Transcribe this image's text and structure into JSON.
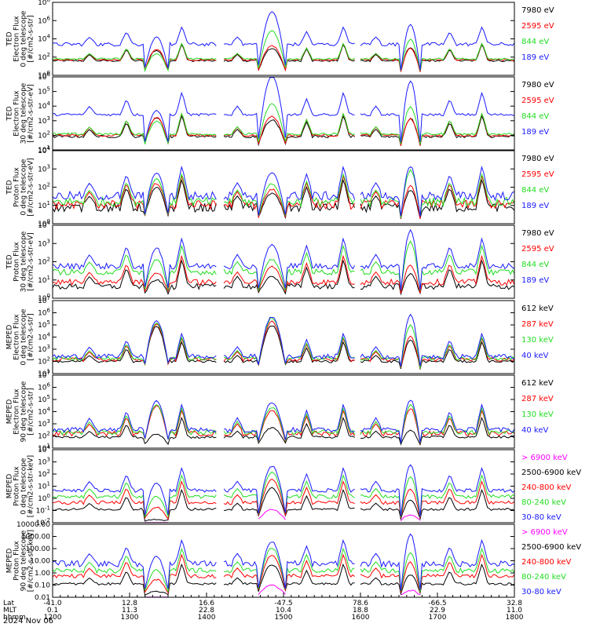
{
  "colors": {
    "blue": "#1a1aff",
    "red": "#ff0000",
    "green": "#22dd22",
    "black": "#000000",
    "magenta": "#ff00ff"
  },
  "chart_data": [
    {
      "type": "line",
      "ylabel": [
        "TED",
        "Electron Flux",
        "0 deg telescope",
        "[#/cm2-s-str]"
      ],
      "ylog": true,
      "ylim_exp": [
        0,
        8
      ],
      "ytick_labels": [
        "10^0",
        "10^2",
        "10^4",
        "10^6",
        "10^8"
      ],
      "series": [
        {
          "name": "7980 eV",
          "color": "black",
          "base": [
            1.5,
            1.7
          ],
          "peak": [
            1.2,
            1.4,
            0.6,
            1.5,
            0.4
          ]
        },
        {
          "name": "2595 eV",
          "color": "red",
          "base": [
            1.6,
            1.8
          ],
          "peak": [
            1.2,
            1.6,
            0.6,
            1.3,
            0.4
          ]
        },
        {
          "name": "844 eV",
          "color": "green",
          "base": [
            1.7,
            1.9
          ],
          "peak": [
            0.6,
            3.1,
            0.5,
            2.2,
            0.6
          ]
        },
        {
          "name": "189 eV",
          "color": "blue",
          "base": [
            3.2,
            3.6
          ],
          "peak": [
            0.9,
            3.7,
            0.6,
            2.3,
            0.7
          ]
        }
      ]
    },
    {
      "type": "line",
      "ylabel": [
        "TED",
        "Electron Flux",
        "30 deg telescope",
        "[#/cm2-s-str-eV]"
      ],
      "ylog": true,
      "ylim_exp": [
        0,
        6
      ],
      "ytick_labels": [
        "10^1",
        "10^2",
        "10^3",
        "10^4",
        "10^5",
        "10^6"
      ],
      "series": [
        {
          "name": "7980 eV",
          "color": "black",
          "base": [
            1.0,
            1.2
          ],
          "peak": [
            1.6,
            1.4,
            0.5,
            1.5,
            0.4
          ]
        },
        {
          "name": "2595 eV",
          "color": "red",
          "base": [
            1.1,
            1.3
          ],
          "peak": [
            1.5,
            1.6,
            0.6,
            1.4,
            0.5
          ]
        },
        {
          "name": "844 eV",
          "color": "green",
          "base": [
            1.2,
            1.4
          ],
          "peak": [
            1.1,
            2.5,
            0.5,
            2.3,
            0.6
          ]
        },
        {
          "name": "189 eV",
          "color": "blue",
          "base": [
            2.8,
            3.0
          ],
          "peak": [
            0.4,
            3.2,
            0.6,
            2.8,
            0.8
          ]
        }
      ]
    },
    {
      "type": "line",
      "ylabel": [
        "TED",
        "Proton Flux",
        "0 deg telescope",
        "[#/cm2-s-str-eV]"
      ],
      "ylog": true,
      "ylim_exp": [
        0,
        5
      ],
      "ytick_labels": [
        "10^0",
        "10^1",
        "10^2",
        "10^3",
        "10^4"
      ],
      "series": [
        {
          "name": "7980 eV",
          "color": "black",
          "base": [
            0.8,
            1.4
          ],
          "peak": [
            1.6,
            1.2,
            0.5,
            1.4,
            0.4
          ]
        },
        {
          "name": "2595 eV",
          "color": "red",
          "base": [
            1.0,
            1.6
          ],
          "peak": [
            1.7,
            1.3,
            0.6,
            1.5,
            0.5
          ]
        },
        {
          "name": "844 eV",
          "color": "green",
          "base": [
            1.2,
            1.8
          ],
          "peak": [
            1.8,
            1.5,
            0.5,
            2.4,
            0.6
          ]
        },
        {
          "name": "189 eV",
          "color": "blue",
          "base": [
            1.6,
            2.2
          ],
          "peak": [
            1.8,
            1.8,
            0.6,
            2.3,
            0.8
          ]
        }
      ]
    },
    {
      "type": "line",
      "ylabel": [
        "TED",
        "Proton Flux",
        "30 deg telescope",
        "[#/cm2-s-str-eV]"
      ],
      "ylog": true,
      "ylim_exp": [
        0,
        5
      ],
      "ytick_labels": [
        "10^0",
        "10^1",
        "10^2",
        "10^3",
        "10^4"
      ],
      "series": [
        {
          "name": "7980 eV",
          "color": "black",
          "base": [
            0.6,
            1.0
          ],
          "peak": [
            0.6,
            0.8,
            0.5,
            1.0,
            0.4
          ]
        },
        {
          "name": "2595 eV",
          "color": "red",
          "base": [
            0.9,
            1.3
          ],
          "peak": [
            0.8,
            1.2,
            0.5,
            1.3,
            0.5
          ]
        },
        {
          "name": "844 eV",
          "color": "green",
          "base": [
            1.6,
            2.0
          ],
          "peak": [
            1.0,
            1.0,
            0.5,
            2.2,
            0.6
          ]
        },
        {
          "name": "189 eV",
          "color": "blue",
          "base": [
            2.0,
            2.4
          ],
          "peak": [
            1.4,
            1.6,
            0.6,
            2.6,
            0.8
          ]
        }
      ]
    },
    {
      "type": "line",
      "ylabel": [
        "MEPED",
        "Electron Flux",
        "0 deg telescope",
        "[#/cm2-s-str]"
      ],
      "ylog": true,
      "ylim_exp": [
        1,
        7
      ],
      "ytick_labels": [
        "10^1",
        "10^2",
        "10^3",
        "10^4",
        "10^5",
        "10^6",
        "10^7"
      ],
      "series": [
        {
          "name": "612 keV",
          "color": "black",
          "base": [
            1.9,
            2.1
          ],
          "peak": [
            2.9,
            3.0,
            0.4,
            1.8,
            0.4
          ]
        },
        {
          "name": "287 keV",
          "color": "red",
          "base": [
            2.0,
            2.3
          ],
          "peak": [
            3.0,
            3.2,
            0.5,
            2.0,
            0.5
          ]
        },
        {
          "name": "130 keV",
          "color": "green",
          "base": [
            2.1,
            2.4
          ],
          "peak": [
            3.0,
            3.4,
            0.5,
            2.8,
            0.6
          ]
        },
        {
          "name": "40 keV",
          "color": "blue",
          "base": [
            2.2,
            2.6
          ],
          "peak": [
            3.1,
            3.4,
            0.6,
            3.6,
            0.7
          ]
        }
      ]
    },
    {
      "type": "line",
      "ylabel": [
        "MEPED",
        "Electron Flux",
        "90 deg telescope",
        "[#/cm2-s-str]"
      ],
      "ylog": true,
      "ylim_exp": [
        1,
        7
      ],
      "ytick_labels": [
        "10^1",
        "10^2",
        "10^3",
        "10^4",
        "10^5",
        "10^6",
        "10^7"
      ],
      "series": [
        {
          "name": "612 keV",
          "color": "black",
          "base": [
            1.8,
            2.0
          ],
          "peak": [
            0.3,
            0.8,
            0.4,
            0.6,
            0.3
          ]
        },
        {
          "name": "287 keV",
          "color": "red",
          "base": [
            2.0,
            2.4
          ],
          "peak": [
            2.4,
            2.0,
            0.6,
            2.2,
            0.6
          ]
        },
        {
          "name": "130 keV",
          "color": "green",
          "base": [
            2.1,
            2.5
          ],
          "peak": [
            2.4,
            2.2,
            0.7,
            2.4,
            0.7
          ]
        },
        {
          "name": "40 keV",
          "color": "blue",
          "base": [
            2.3,
            2.7
          ],
          "peak": [
            2.5,
            2.4,
            0.8,
            2.6,
            0.8
          ]
        }
      ]
    },
    {
      "type": "line",
      "ylabel": [
        "MEPED",
        "Proton Flux",
        "0 deg telescope",
        "[#/cm2-s-str-keV]"
      ],
      "ylog": true,
      "ylim_exp": [
        -2,
        4
      ],
      "ytick_labels": [
        "10^-2",
        "10^-1",
        "10^0",
        "10^1",
        "10^2",
        "10^3",
        "10^4"
      ],
      "series": [
        {
          "name": "> 6900 keV",
          "color": "magenta",
          "base": [
            null,
            null
          ],
          "peak": [
            -1.5,
            1.0,
            0.4,
            0.6,
            0.3
          ]
        },
        {
          "name": "2500-6900 keV",
          "color": "black",
          "base": [
            -1.0,
            -0.8
          ],
          "peak": [
            -0.8,
            1.8,
            0.4,
            0.8,
            0.3
          ]
        },
        {
          "name": "240-800 keV",
          "color": "red",
          "base": [
            -0.5,
            -0.2
          ],
          "peak": [
            -0.3,
            2.0,
            0.5,
            1.2,
            0.4
          ]
        },
        {
          "name": "80-240 keV",
          "color": "green",
          "base": [
            0.0,
            0.3
          ],
          "peak": [
            0.1,
            2.1,
            0.5,
            1.7,
            0.5
          ]
        },
        {
          "name": "30-80 keV",
          "color": "blue",
          "base": [
            0.5,
            0.8
          ],
          "peak": [
            0.7,
            2.1,
            0.6,
            2.2,
            0.7
          ]
        }
      ]
    },
    {
      "type": "line",
      "ylabel": [
        "MEPED",
        "Proton Flux",
        "90 deg telescope",
        "[#/cm2-s-str-keV]"
      ],
      "ylog": true,
      "ylim_exp": [
        -2,
        4
      ],
      "ytick_labels": [
        "0.01",
        "0.10",
        "1.00",
        "10.00",
        "100.00",
        "1000.00",
        "10000.00"
      ],
      "series": [
        {
          "name": "> 6900 keV",
          "color": "magenta",
          "base": [
            null,
            null
          ],
          "peak": [
            -1.5,
            0.9,
            0.4,
            0.5,
            0.3
          ]
        },
        {
          "name": "2500-6900 keV",
          "color": "black",
          "base": [
            -1.0,
            -0.8
          ],
          "peak": [
            -0.6,
            1.6,
            0.4,
            0.8,
            0.3
          ]
        },
        {
          "name": "240-800 keV",
          "color": "red",
          "base": [
            -0.4,
            -0.1
          ],
          "peak": [
            -0.2,
            1.8,
            0.5,
            1.2,
            0.4
          ]
        },
        {
          "name": "80-240 keV",
          "color": "green",
          "base": [
            0.0,
            0.4
          ],
          "peak": [
            0.2,
            2.0,
            0.5,
            1.6,
            0.5
          ]
        },
        {
          "name": "30-80 keV",
          "color": "blue",
          "base": [
            0.5,
            1.0
          ],
          "peak": [
            0.8,
            2.0,
            0.6,
            2.6,
            0.7
          ]
        }
      ]
    }
  ],
  "xaxis": {
    "row_labels": [
      "Lat",
      "MLT",
      "hhmm"
    ],
    "columns": [
      {
        "lat": "-41.0",
        "mlt": "0.1",
        "hhmm": "1200"
      },
      {
        "lat": "12.8",
        "mlt": "11.3",
        "hhmm": "1300"
      },
      {
        "lat": "16.6",
        "mlt": "22.8",
        "hhmm": "1400"
      },
      {
        "lat": "-47.5",
        "mlt": "10.4",
        "hhmm": "1500"
      },
      {
        "lat": "78.6",
        "mlt": "18.8",
        "hhmm": "1600"
      },
      {
        "lat": "-66.5",
        "mlt": "22.9",
        "hhmm": "1700"
      },
      {
        "lat": "32.8",
        "mlt": "11.0",
        "hhmm": "1800"
      }
    ],
    "date": "2024 Nov 06"
  },
  "passes": [
    {
      "center": 0.225,
      "width": 0.028,
      "kind": "pole"
    },
    {
      "center": 0.475,
      "width": 0.032,
      "kind": "pole"
    },
    {
      "center": 0.775,
      "width": 0.022,
      "kind": "pole"
    }
  ]
}
